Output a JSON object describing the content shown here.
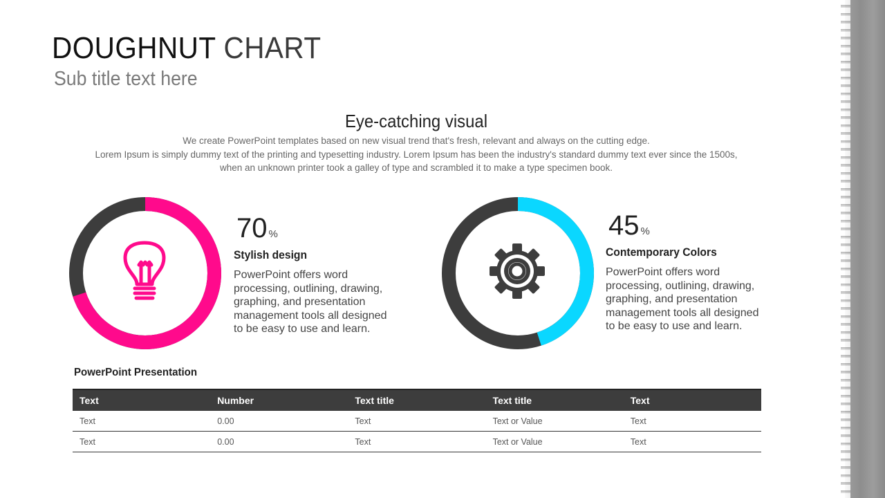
{
  "slide": {
    "title_bold": "DOUGHNUT",
    "title_light": " CHART",
    "subtitle": "Sub title text here"
  },
  "section": {
    "heading": "Eye-catching visual",
    "desc_lines": [
      "We create PowerPoint templates based on new visual trend that's fresh, relevant and always on the cutting edge.",
      "Lorem Ipsum is simply dummy text of the printing and typesetting industry. Lorem Ipsum has been the industry's standard dummy text ever since the 1500s,",
      "when an unknown printer took a galley of type and scrambled it to make a type specimen book."
    ]
  },
  "chart_data": [
    {
      "type": "pie",
      "subtype": "doughnut",
      "title": "Stylish design",
      "value": 70,
      "value_label": "70",
      "unit": "%",
      "remainder": 30,
      "colors": {
        "value": "#ff0a8c",
        "remainder": "#3d3d3d"
      },
      "icon": "lightbulb-icon",
      "description": "PowerPoint offers word processing, outlining, drawing, graphing, and presentation management tools all designed to be easy to use and learn."
    },
    {
      "type": "pie",
      "subtype": "doughnut",
      "title": "Contemporary Colors",
      "value": 45,
      "value_label": "45",
      "unit": "%",
      "remainder": 55,
      "colors": {
        "value": "#0ad7ff",
        "remainder": "#3d3d3d"
      },
      "icon": "gear-icon",
      "description": "PowerPoint offers word processing, outlining, drawing, graphing, and presentation management tools all designed to be easy to use and learn."
    }
  ],
  "table": {
    "title": "PowerPoint Presentation",
    "headers": [
      "Text",
      "Number",
      "Text title",
      "Text title",
      "Text"
    ],
    "rows": [
      [
        "Text",
        "0.00",
        "Text",
        "Text or Value",
        "Text"
      ],
      [
        "Text",
        "0.00",
        "Text",
        "Text or Value",
        "Text"
      ]
    ]
  }
}
